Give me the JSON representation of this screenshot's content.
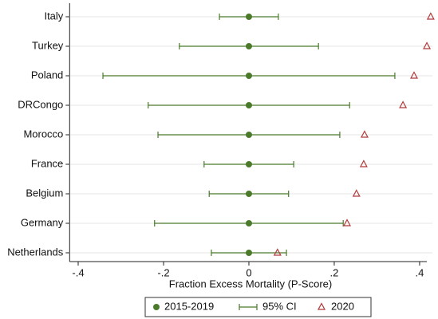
{
  "chart_data": {
    "type": "dot_ci",
    "xlabel": "Fraction Excess Mortality (P-Score)",
    "categories": [
      "Italy",
      "Turkey",
      "Poland",
      "DRCongo",
      "Morocco",
      "France",
      "Belgium",
      "Germany",
      "Netherlands"
    ],
    "series": [
      {
        "name": "2015-2019",
        "color": "#4a7a2a",
        "values": [
          0,
          0,
          0,
          0,
          0,
          0,
          0,
          0,
          0
        ]
      },
      {
        "name": "95% CI",
        "color": "#4a7a2a",
        "values": [
          0.069,
          0.163,
          0.342,
          0.236,
          0.213,
          0.105,
          0.093,
          0.221,
          0.088
        ]
      },
      {
        "name": "2020",
        "color": "#b03a3a",
        "values": [
          0.426,
          0.417,
          0.387,
          0.361,
          0.271,
          0.269,
          0.252,
          0.23,
          0.067
        ]
      }
    ],
    "xlim": [
      -0.42,
      0.43
    ],
    "xticks": [
      {
        "value": -0.4,
        "label": "-.4"
      },
      {
        "value": -0.2,
        "label": "-.2"
      },
      0,
      {
        "value": 0.2,
        "label": ".2"
      },
      {
        "value": 0.4,
        "label": ".4"
      }
    ],
    "grid": true
  }
}
